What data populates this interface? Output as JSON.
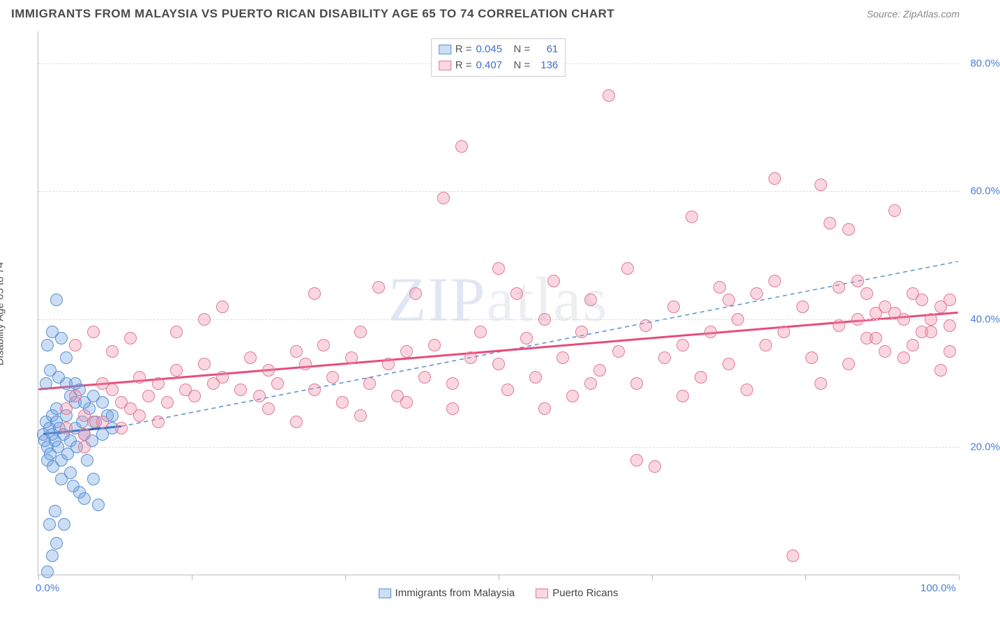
{
  "header": {
    "title": "IMMIGRANTS FROM MALAYSIA VS PUERTO RICAN DISABILITY AGE 65 TO 74 CORRELATION CHART",
    "source_label": "Source: ",
    "source_name": "ZipAtlas.com"
  },
  "watermark": {
    "zip": "ZIP",
    "atlas": "atlas"
  },
  "y_axis_title": "Disability Age 65 to 74",
  "chart": {
    "type": "scatter",
    "xlim": [
      0,
      100
    ],
    "ylim": [
      0,
      85
    ],
    "x_ticks": [
      0,
      16.67,
      33.33,
      50,
      66.67,
      83.33,
      100
    ],
    "x_tick_labels": {
      "0": "0.0%",
      "100": "100.0%"
    },
    "y_grid": [
      20,
      40,
      60,
      80
    ],
    "y_tick_labels": {
      "20": "20.0%",
      "40": "40.0%",
      "60": "60.0%",
      "80": "80.0%"
    },
    "background_color": "#ffffff",
    "grid_color": "#dddddd",
    "axis_color": "#bbbbbb",
    "tick_label_color": "#4b7fd6",
    "point_radius": 9,
    "series": [
      {
        "key": "malaysia",
        "label": "Immigrants from Malaysia",
        "fill": "rgba(110,160,225,0.35)",
        "stroke": "#5a8fd0",
        "r_value": "0.045",
        "n_value": "61",
        "trend_solid": {
          "x1": 0.5,
          "y1": 22,
          "x2": 9,
          "y2": 23.2,
          "color": "#2b5db0",
          "width": 3
        },
        "trend_dash": {
          "x1": 9,
          "y1": 23.2,
          "x2": 100,
          "y2": 49,
          "color": "#5a8fd0",
          "width": 1.5,
          "dash": "6 5"
        },
        "points": [
          [
            0.5,
            22
          ],
          [
            0.7,
            21
          ],
          [
            0.8,
            24
          ],
          [
            1,
            20
          ],
          [
            1,
            18
          ],
          [
            1.2,
            23
          ],
          [
            1.3,
            19
          ],
          [
            1.5,
            25
          ],
          [
            1.5,
            22
          ],
          [
            1.6,
            17
          ],
          [
            1.8,
            21
          ],
          [
            2,
            24
          ],
          [
            2,
            26
          ],
          [
            2.1,
            20
          ],
          [
            2.3,
            23
          ],
          [
            2.5,
            15
          ],
          [
            2.5,
            18
          ],
          [
            2.7,
            22
          ],
          [
            3,
            25
          ],
          [
            3,
            30
          ],
          [
            3.2,
            19
          ],
          [
            3.5,
            16
          ],
          [
            3.5,
            21
          ],
          [
            3.8,
            14
          ],
          [
            4,
            23
          ],
          [
            4,
            27
          ],
          [
            4.2,
            20
          ],
          [
            4.5,
            13
          ],
          [
            4.8,
            24
          ],
          [
            5,
            22
          ],
          [
            5,
            12
          ],
          [
            5.3,
            18
          ],
          [
            5.5,
            26
          ],
          [
            5.8,
            21
          ],
          [
            6,
            15
          ],
          [
            6.2,
            24
          ],
          [
            6.5,
            11
          ],
          [
            7,
            22
          ],
          [
            7.5,
            25
          ],
          [
            8,
            23
          ],
          [
            1,
            36
          ],
          [
            1.5,
            38
          ],
          [
            2,
            43
          ],
          [
            2.5,
            37
          ],
          [
            3,
            34
          ],
          [
            1.2,
            8
          ],
          [
            2,
            5
          ],
          [
            2.8,
            8
          ],
          [
            1.8,
            10
          ],
          [
            3.5,
            28
          ],
          [
            4,
            30
          ],
          [
            4.5,
            29
          ],
          [
            5,
            27
          ],
          [
            6,
            28
          ],
          [
            7,
            27
          ],
          [
            8,
            25
          ],
          [
            1,
            0.5
          ],
          [
            1.5,
            3
          ],
          [
            0.8,
            30
          ],
          [
            1.3,
            32
          ],
          [
            2.2,
            31
          ]
        ]
      },
      {
        "key": "puerto_ricans",
        "label": "Puerto Ricans",
        "fill": "rgba(240,140,165,0.35)",
        "stroke": "#e07a95",
        "r_value": "0.407",
        "n_value": "136",
        "trend_solid": {
          "x1": 0,
          "y1": 29,
          "x2": 100,
          "y2": 41,
          "color": "#e94b7a",
          "width": 3
        },
        "points": [
          [
            3,
            26
          ],
          [
            4,
            28
          ],
          [
            5,
            25
          ],
          [
            6,
            24
          ],
          [
            7,
            30
          ],
          [
            8,
            29
          ],
          [
            9,
            27
          ],
          [
            10,
            26
          ],
          [
            11,
            31
          ],
          [
            12,
            28
          ],
          [
            13,
            30
          ],
          [
            14,
            27
          ],
          [
            15,
            32
          ],
          [
            16,
            29
          ],
          [
            17,
            28
          ],
          [
            18,
            33
          ],
          [
            19,
            30
          ],
          [
            20,
            31
          ],
          [
            22,
            29
          ],
          [
            23,
            34
          ],
          [
            24,
            28
          ],
          [
            25,
            32
          ],
          [
            26,
            30
          ],
          [
            28,
            35
          ],
          [
            29,
            33
          ],
          [
            30,
            29
          ],
          [
            31,
            36
          ],
          [
            32,
            31
          ],
          [
            33,
            27
          ],
          [
            34,
            34
          ],
          [
            35,
            38
          ],
          [
            36,
            30
          ],
          [
            37,
            45
          ],
          [
            38,
            33
          ],
          [
            39,
            28
          ],
          [
            40,
            35
          ],
          [
            41,
            44
          ],
          [
            42,
            31
          ],
          [
            43,
            36
          ],
          [
            44,
            59
          ],
          [
            45,
            30
          ],
          [
            46,
            67
          ],
          [
            47,
            34
          ],
          [
            48,
            38
          ],
          [
            50,
            33
          ],
          [
            51,
            29
          ],
          [
            52,
            44
          ],
          [
            53,
            37
          ],
          [
            54,
            31
          ],
          [
            55,
            40
          ],
          [
            56,
            46
          ],
          [
            57,
            34
          ],
          [
            58,
            28
          ],
          [
            59,
            38
          ],
          [
            60,
            43
          ],
          [
            61,
            32
          ],
          [
            62,
            75
          ],
          [
            63,
            35
          ],
          [
            64,
            48
          ],
          [
            65,
            30
          ],
          [
            66,
            39
          ],
          [
            67,
            17
          ],
          [
            68,
            34
          ],
          [
            69,
            42
          ],
          [
            70,
            36
          ],
          [
            71,
            56
          ],
          [
            72,
            31
          ],
          [
            73,
            38
          ],
          [
            74,
            45
          ],
          [
            75,
            33
          ],
          [
            76,
            40
          ],
          [
            77,
            29
          ],
          [
            78,
            44
          ],
          [
            79,
            36
          ],
          [
            80,
            62
          ],
          [
            81,
            38
          ],
          [
            82,
            3
          ],
          [
            83,
            42
          ],
          [
            84,
            34
          ],
          [
            85,
            30
          ],
          [
            86,
            55
          ],
          [
            87,
            39
          ],
          [
            88,
            33
          ],
          [
            89,
            46
          ],
          [
            90,
            37
          ],
          [
            91,
            41
          ],
          [
            92,
            35
          ],
          [
            93,
            57
          ],
          [
            94,
            40
          ],
          [
            95,
            36
          ],
          [
            96,
            43
          ],
          [
            97,
            38
          ],
          [
            98,
            42
          ],
          [
            99,
            39
          ],
          [
            99,
            35
          ],
          [
            3,
            23
          ],
          [
            5,
            22
          ],
          [
            7,
            24
          ],
          [
            9,
            23
          ],
          [
            11,
            25
          ],
          [
            13,
            24
          ],
          [
            4,
            36
          ],
          [
            6,
            38
          ],
          [
            8,
            35
          ],
          [
            10,
            37
          ],
          [
            5,
            20
          ],
          [
            15,
            38
          ],
          [
            18,
            40
          ],
          [
            20,
            42
          ],
          [
            25,
            26
          ],
          [
            28,
            24
          ],
          [
            30,
            44
          ],
          [
            35,
            25
          ],
          [
            40,
            27
          ],
          [
            45,
            26
          ],
          [
            50,
            48
          ],
          [
            55,
            26
          ],
          [
            60,
            30
          ],
          [
            65,
            18
          ],
          [
            70,
            28
          ],
          [
            75,
            43
          ],
          [
            80,
            46
          ],
          [
            85,
            61
          ],
          [
            88,
            54
          ],
          [
            90,
            44
          ],
          [
            92,
            42
          ],
          [
            94,
            34
          ],
          [
            96,
            38
          ],
          [
            98,
            32
          ],
          [
            87,
            45
          ],
          [
            89,
            40
          ],
          [
            91,
            37
          ],
          [
            93,
            41
          ],
          [
            95,
            44
          ],
          [
            97,
            40
          ],
          [
            99,
            43
          ]
        ]
      }
    ]
  },
  "legend_top": {
    "r_label": "R =",
    "n_label": "N ="
  },
  "legend_bottom_items": [
    "malaysia",
    "puerto_ricans"
  ]
}
